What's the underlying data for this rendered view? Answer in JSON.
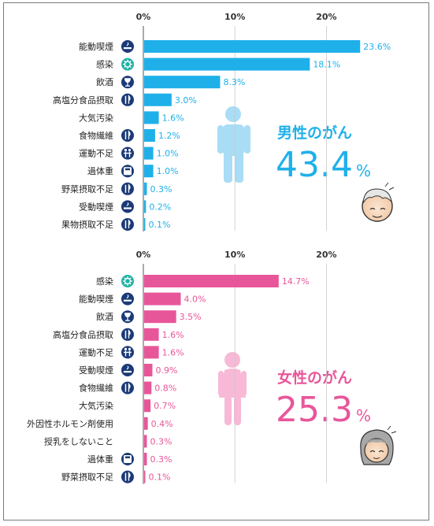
{
  "colors": {
    "male": "#1fb0ea",
    "female": "#e8569a",
    "icon_bg": "#1b3a78",
    "icon_infection": "#22b2a5",
    "label": "#222222",
    "axis": "#555555"
  },
  "chart_data": [
    {
      "type": "bar",
      "orientation": "horizontal",
      "series_name": "男性のがん",
      "total_value": "43.4",
      "total_unit": "%",
      "x_ticks": [
        "0%",
        "10%",
        "20%"
      ],
      "xlim": [
        0,
        24
      ],
      "categories": [
        "能動喫煙",
        "感染",
        "飲酒",
        "高塩分食品摂取",
        "大気汚染",
        "食物繊維",
        "運動不足",
        "過体重",
        "野菜摂取不足",
        "受動喫煙",
        "果物摂取不足"
      ],
      "values": [
        23.6,
        18.1,
        8.3,
        3.0,
        1.6,
        1.2,
        1.0,
        1.0,
        0.3,
        0.2,
        0.1
      ],
      "value_labels": [
        "23.6%",
        "18.1%",
        "8.3%",
        "3.0%",
        "1.6%",
        "1.2%",
        "1.0%",
        "1.0%",
        "0.3%",
        "0.2%",
        "0.1%"
      ],
      "icons": [
        "smoking-icon",
        "virus-icon",
        "drink-icon",
        "fork-knife-icon",
        null,
        "fork-knife-icon",
        "running-icon",
        "scale-icon",
        "fork-knife-icon",
        "smoking-icon",
        "fork-knife-icon"
      ]
    },
    {
      "type": "bar",
      "orientation": "horizontal",
      "series_name": "女性のがん",
      "total_value": "25.3",
      "total_unit": "%",
      "x_ticks": [
        "0%",
        "10%",
        "20%"
      ],
      "xlim": [
        0,
        24
      ],
      "categories": [
        "感染",
        "能動喫煙",
        "飲酒",
        "高塩分食品摂取",
        "運動不足",
        "受動喫煙",
        "食物繊維",
        "大気汚染",
        "外因性ホルモン剤使用",
        "授乳をしないこと",
        "過体重",
        "野菜摂取不足"
      ],
      "values": [
        14.7,
        4.0,
        3.5,
        1.6,
        1.6,
        0.9,
        0.8,
        0.7,
        0.4,
        0.3,
        0.3,
        0.1
      ],
      "value_labels": [
        "14.7%",
        "4.0%",
        "3.5%",
        "1.6%",
        "1.6%",
        "0.9%",
        "0.8%",
        "0.7%",
        "0.4%",
        "0.3%",
        "0.3%",
        "0.1%"
      ],
      "icons": [
        "virus-icon",
        "smoking-icon",
        "drink-icon",
        "fork-knife-icon",
        "running-icon",
        "smoking-icon",
        "fork-knife-icon",
        null,
        null,
        null,
        "scale-icon",
        "fork-knife-icon"
      ]
    }
  ]
}
